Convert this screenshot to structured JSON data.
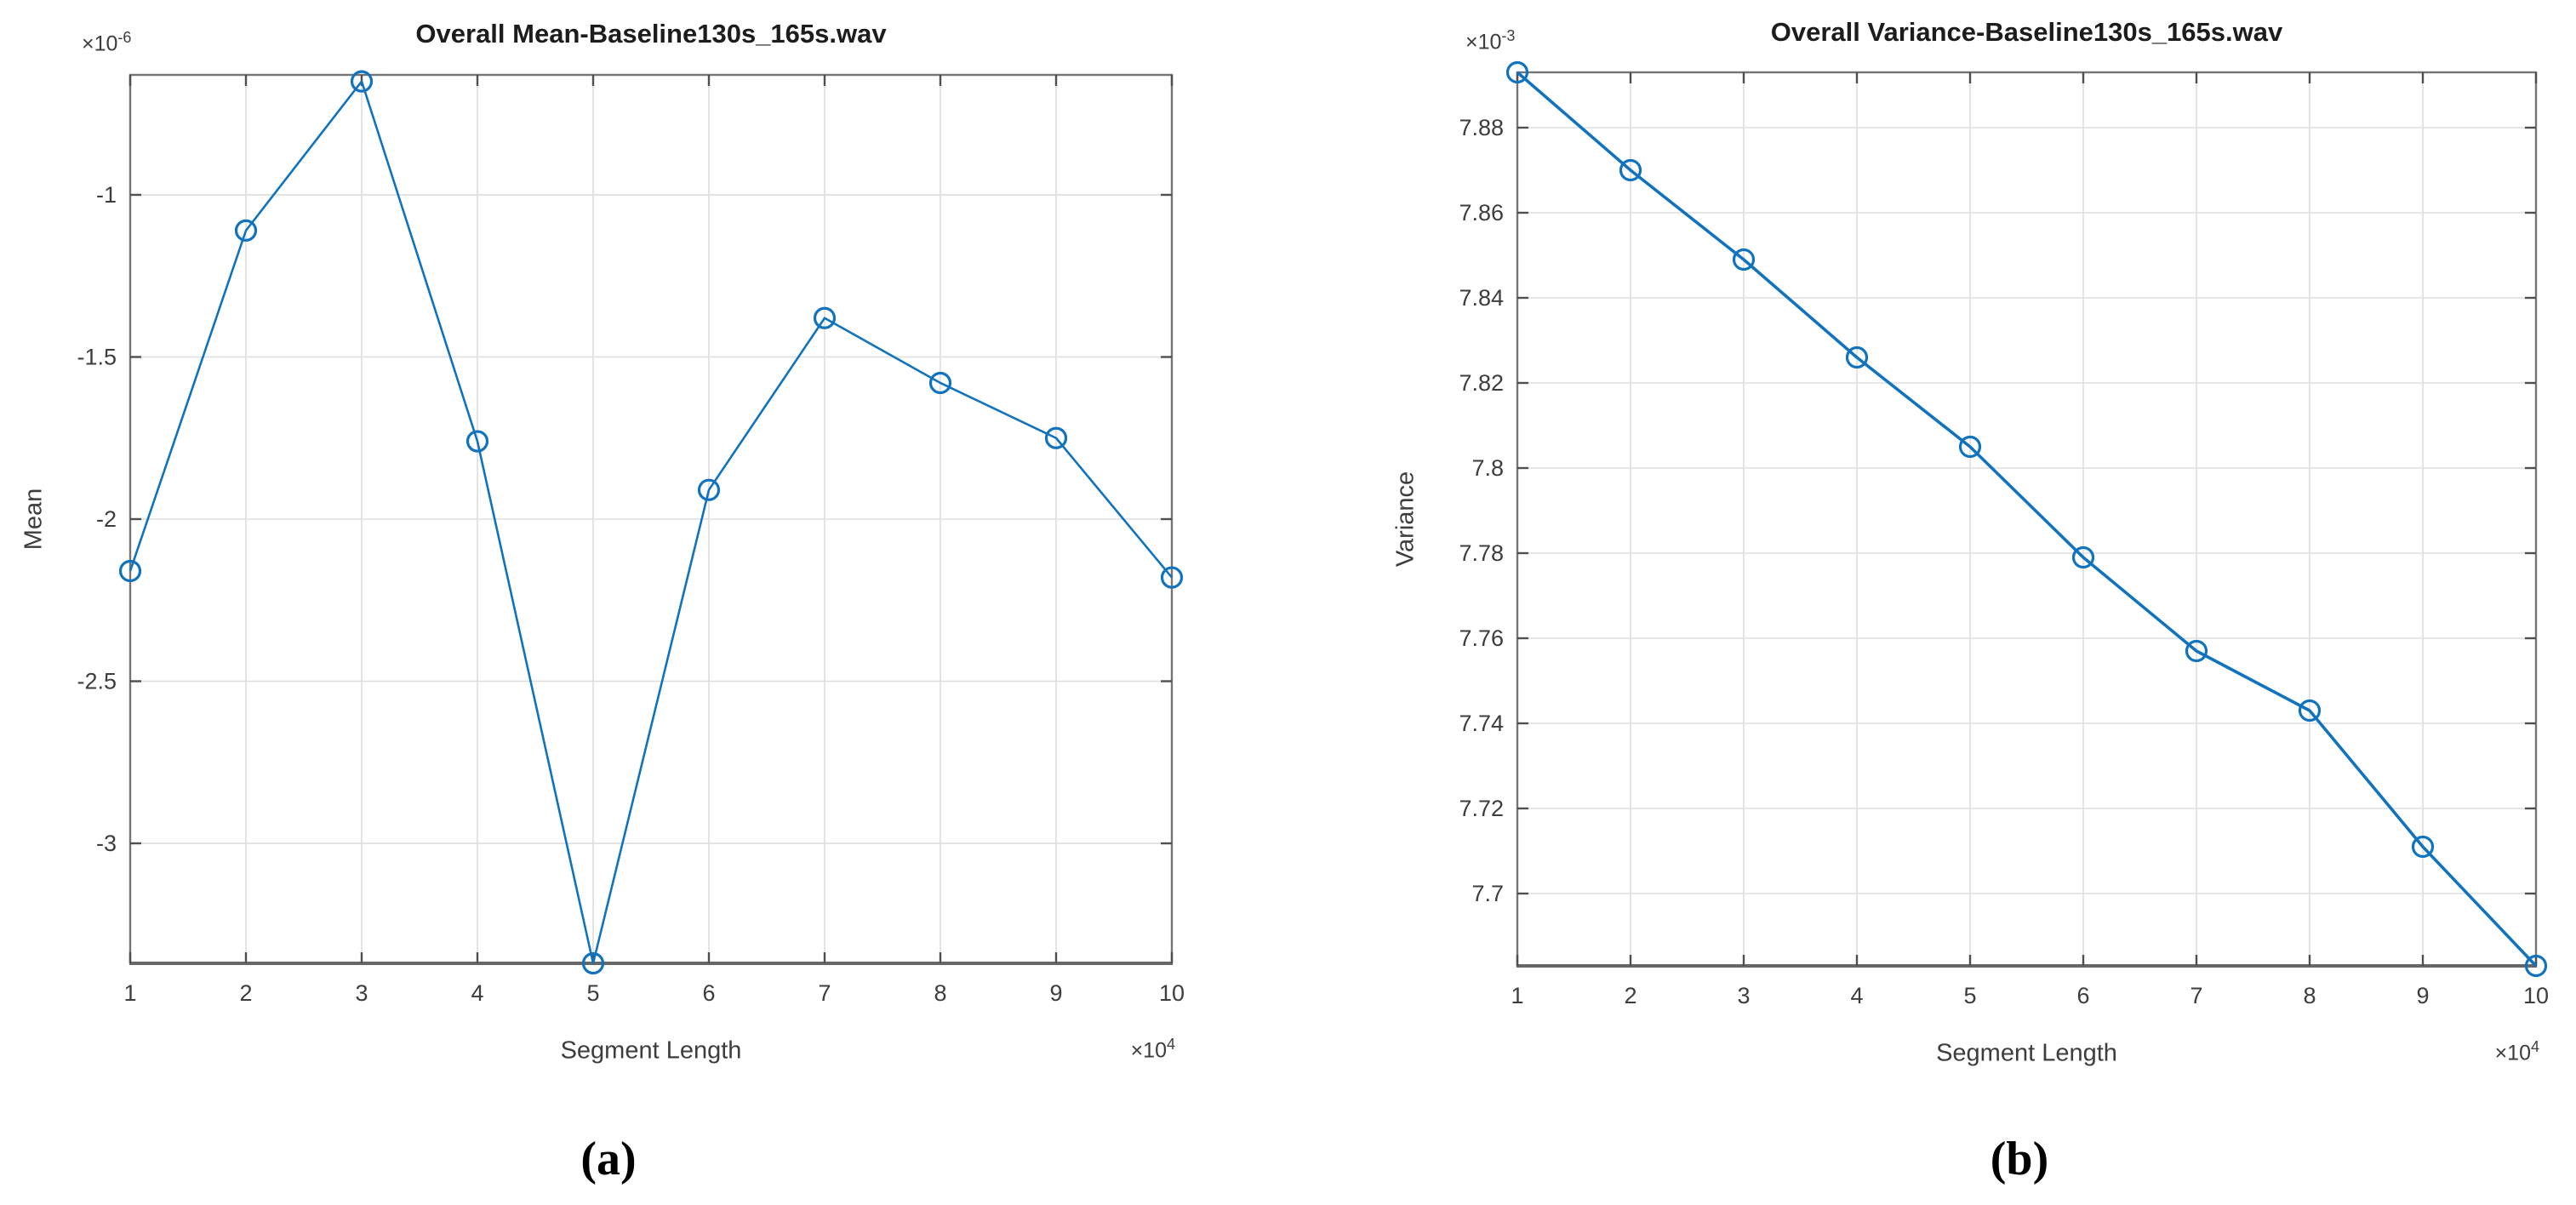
{
  "figure": {
    "background": "#ffffff",
    "colors": {
      "line_blue": "#1173be",
      "grid_gray": "#dedede",
      "axis_gray": "#757575",
      "tick_gray": "#4f4f4f",
      "title_text": "#1c1c1c",
      "tick_text": "#3d3d3d"
    }
  },
  "chart_data": [
    {
      "type": "line",
      "title": "Overall Mean-Baseline130s_165s.wav",
      "xlabel": "Segment Length",
      "ylabel": "Mean",
      "caption": "(a)",
      "y_exp_base": "×10",
      "y_exp_power": "-6",
      "x_exp_base": "×10",
      "x_exp_power": "4",
      "x": [
        1,
        2,
        3,
        4,
        5,
        6,
        7,
        8,
        9,
        10
      ],
      "values": [
        -2.16,
        -1.11,
        -0.65,
        -1.76,
        -3.37,
        -1.91,
        -1.38,
        -1.58,
        -1.75,
        -2.18
      ],
      "x_tick_labels": [
        "1",
        "2",
        "3",
        "4",
        "5",
        "6",
        "7",
        "8",
        "9",
        "10"
      ],
      "y_ticks": [
        -1,
        -1.5,
        -2,
        -2.5,
        -3
      ],
      "y_tick_labels": [
        "-1",
        "-1.5",
        "-2",
        "-2.5",
        "-3"
      ],
      "xlim": [
        1,
        10
      ],
      "ylim": [
        -3.37,
        -0.63
      ],
      "grid": true,
      "marker": "open-circle",
      "legend": "none",
      "units_note": "y values are ×10^-6, x values are ×10^4"
    },
    {
      "type": "line",
      "title": "Overall Variance-Baseline130s_165s.wav",
      "xlabel": "Segment Length",
      "ylabel": "Variance",
      "caption": "(b)",
      "y_exp_base": "×10",
      "y_exp_power": "-3",
      "x_exp_base": "×10",
      "x_exp_power": "4",
      "x": [
        1,
        2,
        3,
        4,
        5,
        6,
        7,
        8,
        9,
        10
      ],
      "values": [
        7.893,
        7.87,
        7.849,
        7.826,
        7.805,
        7.779,
        7.757,
        7.743,
        7.711,
        7.683
      ],
      "x_tick_labels": [
        "1",
        "2",
        "3",
        "4",
        "5",
        "6",
        "7",
        "8",
        "9",
        "10"
      ],
      "y_ticks": [
        7.88,
        7.86,
        7.84,
        7.82,
        7.8,
        7.78,
        7.76,
        7.74,
        7.72,
        7.7
      ],
      "y_tick_labels": [
        "7.88",
        "7.86",
        "7.84",
        "7.82",
        "7.8",
        "7.78",
        "7.76",
        "7.74",
        "7.72",
        "7.7"
      ],
      "xlim": [
        1,
        10
      ],
      "ylim": [
        7.683,
        7.893
      ],
      "grid": true,
      "marker": "open-circle",
      "legend": "none",
      "units_note": "y values are ×10^-3, x values are ×10^4"
    }
  ]
}
